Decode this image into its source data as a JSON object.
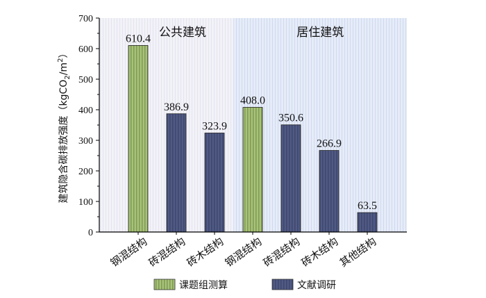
{
  "chart_data": {
    "type": "bar",
    "categories": [
      "钢混结构",
      "砖混结构",
      "砖木结构",
      "钢混结构",
      "砖混结构",
      "砖木结构",
      "其他结构"
    ],
    "values": [
      610.4,
      386.9,
      323.9,
      408.0,
      350.6,
      266.9,
      63.5
    ],
    "value_labels": [
      "610.4",
      "386.9",
      "323.9",
      "408.0",
      "350.6",
      "266.9",
      "63.5"
    ],
    "bar_series": [
      0,
      1,
      1,
      0,
      1,
      1,
      1
    ],
    "series": [
      {
        "name": "课题组测算",
        "color": "#a8c27a",
        "stripe": "#7e9a52"
      },
      {
        "name": "文献调研",
        "color": "#505a82",
        "stripe": "#3e4770"
      }
    ],
    "regions": [
      {
        "label": "公共建筑",
        "start": 0,
        "end": 2,
        "background": "#f2f2f8",
        "stripe": "#e3e4ee"
      },
      {
        "label": "居住建筑",
        "start": 3,
        "end": 6,
        "background": "#e6ecf8",
        "stripe": "#cfd9ee"
      }
    ],
    "ylabel_parts": {
      "prefix": "建筑隐含碳排放强度（kgCO",
      "sub": "2",
      "mid": "/m",
      "sup": "2",
      "suffix": "）"
    },
    "ylim": [
      0,
      700
    ],
    "yticks": [
      "0",
      "100",
      "200",
      "300",
      "400",
      "500",
      "600",
      "700"
    ],
    "grid": false,
    "legend_position": "bottom"
  }
}
